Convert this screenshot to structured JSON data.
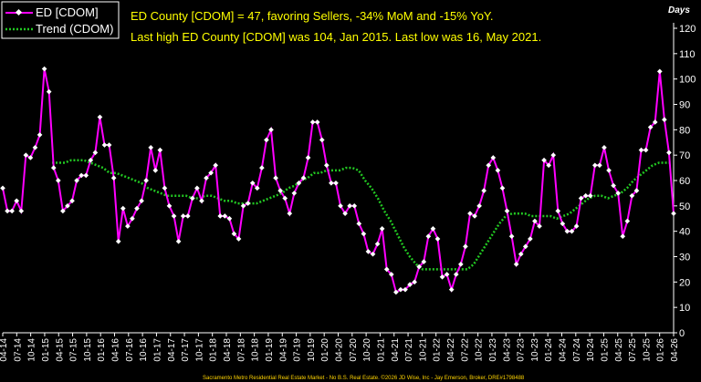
{
  "chart_data": {
    "type": "line",
    "header_line1": "ED County [CDOM] = 47, favoring Sellers, -34% MoM and -15% YoY.",
    "header_line2": "Last high ED County [CDOM] was 104, Jan 2015. Last low was 16, May 2021.",
    "ylabel_unit": "Days",
    "ylim": [
      0,
      120
    ],
    "yticks": [
      0,
      10,
      20,
      30,
      40,
      50,
      60,
      70,
      80,
      90,
      100,
      110,
      120
    ],
    "grid": false,
    "legend_position": "top-left",
    "footer": "Sacramento Metro Residential Real Estate Market - No B.S. Real Estate. ©2026 JD Wise, Inc - Jay Emerson, Broker, DRE#1798488",
    "x_tick_labels": [
      "04-14",
      "07-14",
      "10-14",
      "01-15",
      "04-15",
      "07-15",
      "10-15",
      "01-16",
      "04-16",
      "07-16",
      "10-16",
      "01-17",
      "04-17",
      "07-17",
      "10-17",
      "01-18",
      "04-18",
      "07-18",
      "10-18",
      "01-19",
      "04-19",
      "07-19",
      "10-19",
      "01-20",
      "04-20",
      "07-20",
      "10-20",
      "01-21",
      "04-21",
      "07-21",
      "10-21",
      "01-22",
      "04-22",
      "07-22",
      "10-22",
      "01-23",
      "04-23",
      "07-23",
      "10-23",
      "01-24",
      "04-24",
      "07-24",
      "10-24",
      "01-25",
      "04-25",
      "07-25",
      "10-25",
      "01-26",
      "04-26"
    ],
    "series": [
      {
        "name": "ED [CDOM]",
        "color": "#ff00ff",
        "marker": "diamond",
        "values": [
          57,
          48,
          48,
          52,
          48,
          70,
          69,
          73,
          78,
          104,
          95,
          65,
          60,
          48,
          50,
          52,
          60,
          62,
          62,
          68,
          71,
          85,
          74,
          74,
          61,
          36,
          49,
          42,
          45,
          49,
          52,
          60,
          73,
          64,
          72,
          57,
          50,
          46,
          36,
          46,
          46,
          53,
          57,
          52,
          61,
          63,
          66,
          46,
          46,
          45,
          39,
          37,
          50,
          51,
          59,
          57,
          65,
          76,
          80,
          61,
          56,
          53,
          47,
          55,
          59,
          61,
          69,
          83,
          83,
          76,
          66,
          59,
          59,
          50,
          47,
          50,
          50,
          43,
          39,
          32,
          31,
          35,
          41,
          25,
          23,
          16,
          17,
          17,
          19,
          20,
          26,
          28,
          38,
          41,
          37,
          22,
          23,
          17,
          23,
          27,
          34,
          47,
          46,
          50,
          56,
          66,
          69,
          64,
          57,
          48,
          38,
          27,
          31,
          34,
          37,
          44,
          42,
          68,
          66,
          70,
          48,
          43,
          40,
          40,
          42,
          53,
          54,
          54,
          66,
          66,
          73,
          64,
          58,
          55,
          38,
          44,
          54,
          56,
          72,
          72,
          81,
          83,
          103,
          84,
          71,
          47
        ]
      },
      {
        "name": "Trend (CDOM)",
        "color": "#22c822",
        "marker": "none",
        "values": [
          67,
          67,
          67,
          68,
          68,
          68,
          67,
          66,
          65,
          63,
          63,
          62,
          61,
          60,
          59,
          57,
          56,
          55,
          54,
          54,
          54,
          54,
          53,
          53,
          54,
          54,
          53,
          52,
          52,
          51,
          51,
          51,
          51,
          52,
          53,
          54,
          55,
          57,
          58,
          60,
          61,
          63,
          63,
          64,
          64,
          64,
          65,
          65,
          64,
          60,
          57,
          53,
          48,
          44,
          39,
          34,
          30,
          27,
          25,
          25,
          25,
          25,
          25,
          25,
          25,
          25,
          27,
          31,
          35,
          39,
          43,
          46,
          47,
          47,
          47,
          46,
          46,
          46,
          46,
          45,
          46,
          47,
          49,
          51,
          53,
          54,
          54,
          53,
          54,
          55,
          57,
          60,
          62,
          64,
          66,
          67,
          67,
          67
        ]
      }
    ]
  }
}
